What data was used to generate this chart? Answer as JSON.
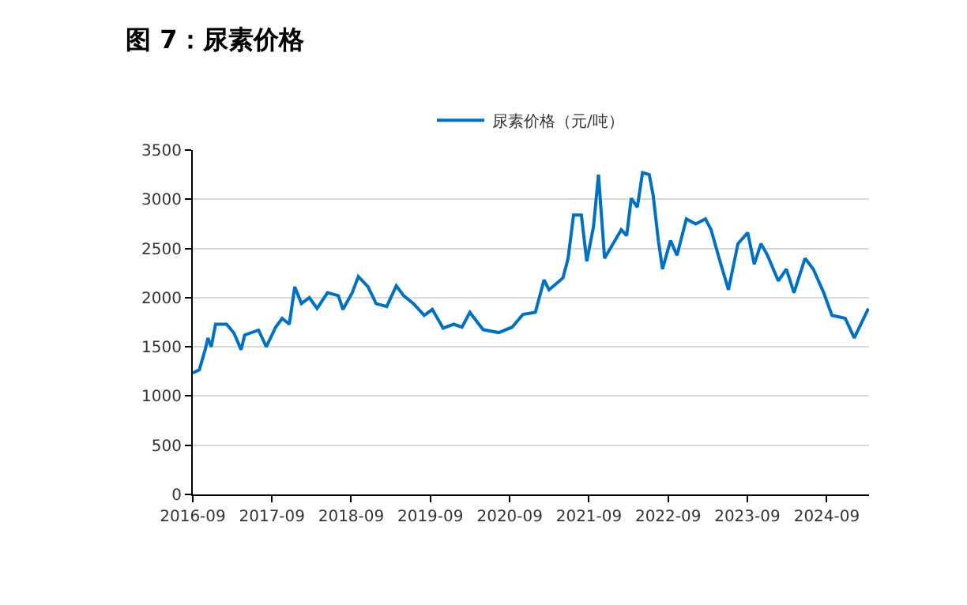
{
  "chart_data": {
    "type": "line",
    "title": "图 7：尿素价格",
    "legend": "top",
    "grid": "y",
    "marker": "none",
    "line_style": "solid",
    "x": [
      "2016-09-01",
      "2016-10-01",
      "2016-10-28",
      "2016-11-10",
      "2016-11-25",
      "2016-12-15",
      "2017-02-04",
      "2017-03-10",
      "2017-04-12",
      "2017-04-28",
      "2017-07-01",
      "2017-08-06",
      "2017-09-18",
      "2017-10-18",
      "2017-11-20",
      "2017-12-15",
      "2018-01-15",
      "2018-02-20",
      "2018-03-28",
      "2018-05-15",
      "2018-07-04",
      "2018-07-25",
      "2018-09-06",
      "2018-10-04",
      "2018-11-18",
      "2018-12-25",
      "2019-02-12",
      "2019-03-28",
      "2019-05-01",
      "2019-06-15",
      "2019-08-04",
      "2019-09-10",
      "2019-10-30",
      "2019-12-18",
      "2020-01-25",
      "2020-03-01",
      "2020-05-01",
      "2020-07-12",
      "2020-09-12",
      "2020-11-01",
      "2020-12-28",
      "2021-02-06",
      "2021-03-01",
      "2021-05-04",
      "2021-05-28",
      "2021-06-22",
      "2021-07-28",
      "2021-08-22",
      "2021-09-22",
      "2021-10-15",
      "2021-11-12",
      "2021-12-22",
      "2022-01-28",
      "2022-02-22",
      "2022-03-15",
      "2022-04-12",
      "2022-05-06",
      "2022-06-06",
      "2022-06-24",
      "2022-07-18",
      "2022-08-06",
      "2022-09-12",
      "2022-10-12",
      "2022-11-24",
      "2023-01-06",
      "2023-02-20",
      "2023-03-18",
      "2023-04-28",
      "2023-06-06",
      "2023-07-20",
      "2023-09-03",
      "2023-10-03",
      "2023-11-03",
      "2023-12-03",
      "2024-01-22",
      "2024-02-28",
      "2024-04-03",
      "2024-05-24",
      "2024-07-01",
      "2024-08-18",
      "2024-09-25",
      "2024-11-25",
      "2025-01-06",
      "2025-02-18",
      "2025-03-12"
    ],
    "series": [
      {
        "name": "尿素价格（元/吨）",
        "color": "#0070c0",
        "values": [
          1235,
          1265,
          1470,
          1590,
          1500,
          1730,
          1730,
          1640,
          1470,
          1620,
          1670,
          1500,
          1700,
          1790,
          1730,
          2110,
          1940,
          2000,
          1890,
          2050,
          2020,
          1880,
          2050,
          2215,
          2110,
          1940,
          1910,
          2120,
          2020,
          1940,
          1820,
          1880,
          1690,
          1730,
          1700,
          1850,
          1675,
          1645,
          1700,
          1830,
          1850,
          2180,
          2080,
          2200,
          2400,
          2840,
          2840,
          2370,
          2720,
          3250,
          2400,
          2550,
          2690,
          2630,
          3010,
          2920,
          3270,
          3250,
          3040,
          2580,
          2290,
          2580,
          2430,
          2800,
          2750,
          2800,
          2690,
          2370,
          2080,
          2550,
          2660,
          2340,
          2550,
          2430,
          2170,
          2290,
          2050,
          2400,
          2290,
          2050,
          1820,
          1790,
          1590,
          1790,
          1890
        ]
      }
    ],
    "xlim": [
      "2016-09-01",
      "2025-03-15"
    ],
    "xticks": [
      "2016-09",
      "2017-09",
      "2018-09",
      "2019-09",
      "2020-09",
      "2021-09",
      "2022-09",
      "2023-09",
      "2024-09"
    ],
    "ylim": [
      0,
      3500
    ],
    "yticks": [
      0,
      500,
      1000,
      1500,
      2000,
      2500,
      3000,
      3500
    ]
  }
}
